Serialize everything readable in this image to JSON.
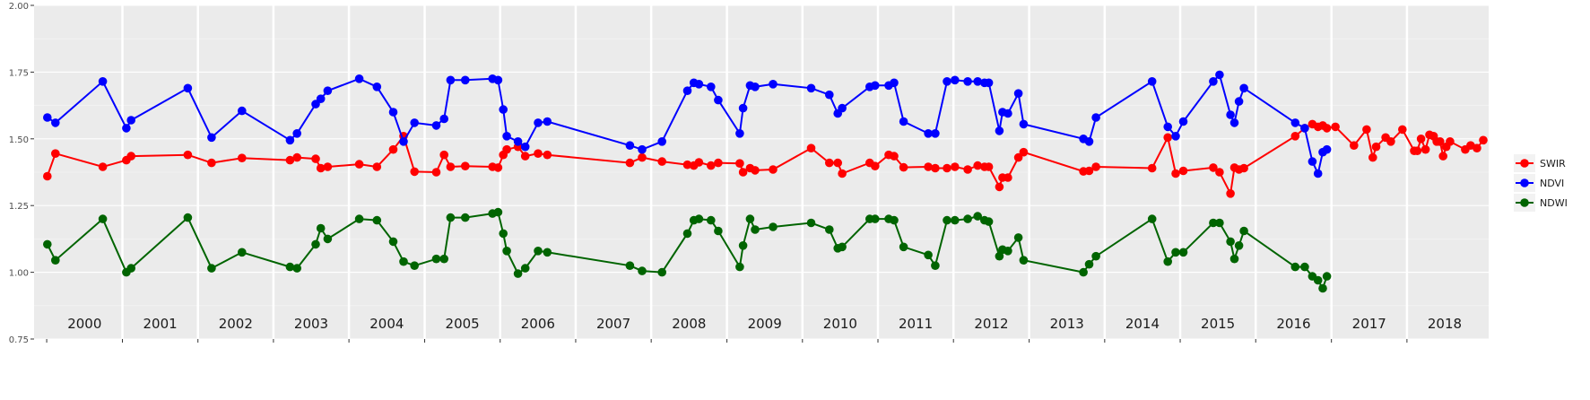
{
  "chart_data": {
    "type": "line",
    "title": "",
    "xlabel": "",
    "ylabel": "",
    "ylim": [
      0.75,
      2.0
    ],
    "y_ticks": [
      "0.75",
      "1.00",
      "1.25",
      "1.50",
      "1.75",
      "2.00"
    ],
    "y_tick_values": [
      0.75,
      1.0,
      1.25,
      1.5,
      1.75,
      2.0
    ],
    "xlim": [
      "1999-11-01",
      "2019-01-31"
    ],
    "year_labels": [
      "2000",
      "2001",
      "2002",
      "2003",
      "2004",
      "2005",
      "2006",
      "2007",
      "2008",
      "2009",
      "2010",
      "2011",
      "2012",
      "2013",
      "2014",
      "2015",
      "2016",
      "2017",
      "2018"
    ],
    "grid": true,
    "legend_position": "right",
    "series": [
      {
        "name": "SWIR",
        "color": "#ff0000",
        "points": [
          [
            "2000-01-04",
            1.36
          ],
          [
            "2000-02-12",
            1.445
          ],
          [
            "2000-09-28",
            1.395
          ],
          [
            "2001-01-20",
            1.42
          ],
          [
            "2001-02-12",
            1.435
          ],
          [
            "2001-11-13",
            1.44
          ],
          [
            "2002-03-08",
            1.41
          ],
          [
            "2002-08-02",
            1.428
          ],
          [
            "2003-03-22",
            1.42
          ],
          [
            "2003-04-25",
            1.43
          ],
          [
            "2003-07-24",
            1.425
          ],
          [
            "2003-08-18",
            1.39
          ],
          [
            "2003-09-20",
            1.395
          ],
          [
            "2004-02-20",
            1.405
          ],
          [
            "2004-05-15",
            1.395
          ],
          [
            "2004-08-02",
            1.46
          ],
          [
            "2004-09-21",
            1.51
          ],
          [
            "2004-11-13",
            1.377
          ],
          [
            "2005-02-26",
            1.375
          ],
          [
            "2005-04-05",
            1.44
          ],
          [
            "2005-05-06",
            1.395
          ],
          [
            "2005-07-16",
            1.398
          ],
          [
            "2005-11-25",
            1.395
          ],
          [
            "2005-12-22",
            1.392
          ],
          [
            "2006-01-16",
            1.44
          ],
          [
            "2006-02-02",
            1.46
          ],
          [
            "2006-03-28",
            1.47
          ],
          [
            "2006-05-02",
            1.435
          ],
          [
            "2006-07-03",
            1.445
          ],
          [
            "2006-08-17",
            1.44
          ],
          [
            "2007-09-20",
            1.41
          ],
          [
            "2007-11-18",
            1.43
          ],
          [
            "2008-02-22",
            1.415
          ],
          [
            "2008-06-24",
            1.403
          ],
          [
            "2008-07-25",
            1.4
          ],
          [
            "2008-08-19",
            1.412
          ],
          [
            "2008-10-16",
            1.4
          ],
          [
            "2008-11-20",
            1.41
          ],
          [
            "2009-03-04",
            1.408
          ],
          [
            "2009-03-20",
            1.375
          ],
          [
            "2009-04-23",
            1.39
          ],
          [
            "2009-05-17",
            1.382
          ],
          [
            "2009-08-12",
            1.385
          ],
          [
            "2010-02-12",
            1.465
          ],
          [
            "2010-05-11",
            1.41
          ],
          [
            "2010-06-21",
            1.41
          ],
          [
            "2010-07-12",
            1.37
          ],
          [
            "2010-11-22",
            1.41
          ],
          [
            "2010-12-18",
            1.398
          ],
          [
            "2011-02-22",
            1.44
          ],
          [
            "2011-03-20",
            1.435
          ],
          [
            "2011-05-05",
            1.393
          ],
          [
            "2011-09-01",
            1.395
          ],
          [
            "2011-10-05",
            1.39
          ],
          [
            "2011-12-01",
            1.39
          ],
          [
            "2012-01-08",
            1.395
          ],
          [
            "2012-03-10",
            1.385
          ],
          [
            "2012-04-27",
            1.4
          ],
          [
            "2012-05-30",
            1.395
          ],
          [
            "2012-06-20",
            1.395
          ],
          [
            "2012-08-10",
            1.32
          ],
          [
            "2012-08-25",
            1.355
          ],
          [
            "2012-09-20",
            1.355
          ],
          [
            "2012-11-10",
            1.43
          ],
          [
            "2012-12-05",
            1.45
          ],
          [
            "2013-09-20",
            1.378
          ],
          [
            "2013-10-18",
            1.38
          ],
          [
            "2013-11-20",
            1.395
          ],
          [
            "2014-08-18",
            1.39
          ],
          [
            "2014-11-02",
            1.505
          ],
          [
            "2014-12-10",
            1.37
          ],
          [
            "2015-01-16",
            1.38
          ],
          [
            "2015-06-10",
            1.392
          ],
          [
            "2015-07-10",
            1.375
          ],
          [
            "2015-09-01",
            1.295
          ],
          [
            "2015-09-20",
            1.392
          ],
          [
            "2015-10-12",
            1.385
          ],
          [
            "2015-11-05",
            1.39
          ],
          [
            "2016-07-10",
            1.51
          ],
          [
            "2016-08-25",
            1.54
          ],
          [
            "2016-10-01",
            1.555
          ],
          [
            "2016-10-28",
            1.545
          ],
          [
            "2016-11-20",
            1.55
          ],
          [
            "2016-12-10",
            1.54
          ]
        ]
      },
      {
        "name": "NDVI",
        "color": "#0000ff",
        "points": [
          [
            "2000-01-04",
            1.58
          ],
          [
            "2000-02-12",
            1.56
          ],
          [
            "2000-09-28",
            1.715
          ],
          [
            "2001-01-20",
            1.54
          ],
          [
            "2001-02-12",
            1.57
          ],
          [
            "2001-11-13",
            1.69
          ],
          [
            "2002-03-08",
            1.505
          ],
          [
            "2002-08-02",
            1.605
          ],
          [
            "2003-03-22",
            1.495
          ],
          [
            "2003-04-25",
            1.52
          ],
          [
            "2003-07-24",
            1.63
          ],
          [
            "2003-08-18",
            1.65
          ],
          [
            "2003-09-20",
            1.68
          ],
          [
            "2004-02-20",
            1.725
          ],
          [
            "2004-05-15",
            1.695
          ],
          [
            "2004-08-02",
            1.6
          ],
          [
            "2004-09-21",
            1.49
          ],
          [
            "2004-11-13",
            1.56
          ],
          [
            "2005-02-26",
            1.55
          ],
          [
            "2005-04-05",
            1.575
          ],
          [
            "2005-05-06",
            1.72
          ],
          [
            "2005-07-16",
            1.72
          ],
          [
            "2005-11-25",
            1.725
          ],
          [
            "2005-12-22",
            1.72
          ],
          [
            "2006-01-16",
            1.61
          ],
          [
            "2006-02-02",
            1.51
          ],
          [
            "2006-03-28",
            1.49
          ],
          [
            "2006-05-02",
            1.47
          ],
          [
            "2006-07-03",
            1.56
          ],
          [
            "2006-08-17",
            1.565
          ],
          [
            "2007-09-20",
            1.475
          ],
          [
            "2007-11-18",
            1.46
          ],
          [
            "2008-02-22",
            1.49
          ],
          [
            "2008-06-24",
            1.68
          ],
          [
            "2008-07-25",
            1.71
          ],
          [
            "2008-08-19",
            1.705
          ],
          [
            "2008-10-16",
            1.695
          ],
          [
            "2008-11-20",
            1.645
          ],
          [
            "2009-03-04",
            1.52
          ],
          [
            "2009-03-20",
            1.615
          ],
          [
            "2009-04-23",
            1.7
          ],
          [
            "2009-05-17",
            1.695
          ],
          [
            "2009-08-12",
            1.705
          ],
          [
            "2010-02-12",
            1.69
          ],
          [
            "2010-05-11",
            1.665
          ],
          [
            "2010-06-21",
            1.595
          ],
          [
            "2010-07-12",
            1.615
          ],
          [
            "2010-11-22",
            1.695
          ],
          [
            "2010-12-18",
            1.7
          ],
          [
            "2011-02-22",
            1.7
          ],
          [
            "2011-03-20",
            1.71
          ],
          [
            "2011-05-05",
            1.565
          ],
          [
            "2011-09-01",
            1.52
          ],
          [
            "2011-10-05",
            1.52
          ],
          [
            "2011-12-01",
            1.715
          ],
          [
            "2012-01-08",
            1.72
          ],
          [
            "2012-03-10",
            1.715
          ],
          [
            "2012-04-27",
            1.715
          ],
          [
            "2012-05-30",
            1.71
          ],
          [
            "2012-06-20",
            1.71
          ],
          [
            "2012-08-10",
            1.53
          ],
          [
            "2012-08-25",
            1.6
          ],
          [
            "2012-09-20",
            1.595
          ],
          [
            "2012-11-10",
            1.67
          ],
          [
            "2012-12-05",
            1.555
          ],
          [
            "2013-09-20",
            1.5
          ],
          [
            "2013-10-18",
            1.49
          ],
          [
            "2013-11-20",
            1.58
          ],
          [
            "2014-08-18",
            1.715
          ],
          [
            "2014-11-02",
            1.545
          ],
          [
            "2014-12-10",
            1.51
          ],
          [
            "2015-01-16",
            1.565
          ],
          [
            "2015-06-10",
            1.715
          ],
          [
            "2015-07-10",
            1.74
          ],
          [
            "2015-09-01",
            1.59
          ],
          [
            "2015-09-20",
            1.56
          ],
          [
            "2015-10-12",
            1.64
          ],
          [
            "2015-11-05",
            1.69
          ],
          [
            "2016-07-10",
            1.56
          ],
          [
            "2016-08-25",
            1.54
          ],
          [
            "2016-10-01",
            1.415
          ],
          [
            "2016-10-28",
            1.37
          ],
          [
            "2016-11-20",
            1.45
          ],
          [
            "2016-12-10",
            1.46
          ]
        ]
      },
      {
        "name": "NDWI",
        "color": "#006400",
        "points": [
          [
            "2000-01-04",
            1.105
          ],
          [
            "2000-02-12",
            1.045
          ],
          [
            "2000-09-28",
            1.2
          ],
          [
            "2001-01-20",
            1.0
          ],
          [
            "2001-02-12",
            1.015
          ],
          [
            "2001-11-13",
            1.205
          ],
          [
            "2002-03-08",
            1.015
          ],
          [
            "2002-08-02",
            1.075
          ],
          [
            "2003-03-22",
            1.02
          ],
          [
            "2003-04-25",
            1.015
          ],
          [
            "2003-07-24",
            1.105
          ],
          [
            "2003-08-18",
            1.165
          ],
          [
            "2003-09-20",
            1.125
          ],
          [
            "2004-02-20",
            1.2
          ],
          [
            "2004-05-15",
            1.195
          ],
          [
            "2004-08-02",
            1.115
          ],
          [
            "2004-09-21",
            1.04
          ],
          [
            "2004-11-13",
            1.025
          ],
          [
            "2005-02-26",
            1.05
          ],
          [
            "2005-04-05",
            1.05
          ],
          [
            "2005-05-06",
            1.205
          ],
          [
            "2005-07-16",
            1.205
          ],
          [
            "2005-11-25",
            1.22
          ],
          [
            "2005-12-22",
            1.225
          ],
          [
            "2006-01-16",
            1.145
          ],
          [
            "2006-02-02",
            1.08
          ],
          [
            "2006-03-28",
            0.995
          ],
          [
            "2006-05-02",
            1.015
          ],
          [
            "2006-07-03",
            1.08
          ],
          [
            "2006-08-17",
            1.075
          ],
          [
            "2007-09-20",
            1.025
          ],
          [
            "2007-11-18",
            1.005
          ],
          [
            "2008-02-22",
            1.0
          ],
          [
            "2008-06-24",
            1.145
          ],
          [
            "2008-07-25",
            1.195
          ],
          [
            "2008-08-19",
            1.2
          ],
          [
            "2008-10-16",
            1.195
          ],
          [
            "2008-11-20",
            1.155
          ],
          [
            "2009-03-04",
            1.02
          ],
          [
            "2009-03-20",
            1.1
          ],
          [
            "2009-04-23",
            1.2
          ],
          [
            "2009-05-17",
            1.16
          ],
          [
            "2009-08-12",
            1.17
          ],
          [
            "2010-02-12",
            1.185
          ],
          [
            "2010-05-11",
            1.16
          ],
          [
            "2010-06-21",
            1.09
          ],
          [
            "2010-07-12",
            1.095
          ],
          [
            "2010-11-22",
            1.2
          ],
          [
            "2010-12-18",
            1.2
          ],
          [
            "2011-02-22",
            1.2
          ],
          [
            "2011-03-20",
            1.195
          ],
          [
            "2011-05-05",
            1.095
          ],
          [
            "2011-09-01",
            1.065
          ],
          [
            "2011-10-05",
            1.025
          ],
          [
            "2011-12-01",
            1.195
          ],
          [
            "2012-01-08",
            1.195
          ],
          [
            "2012-03-10",
            1.2
          ],
          [
            "2012-04-27",
            1.21
          ],
          [
            "2012-05-30",
            1.195
          ],
          [
            "2012-06-20",
            1.19
          ],
          [
            "2012-08-10",
            1.06
          ],
          [
            "2012-08-25",
            1.085
          ],
          [
            "2012-09-20",
            1.08
          ],
          [
            "2012-11-10",
            1.13
          ],
          [
            "2012-12-05",
            1.045
          ],
          [
            "2013-09-20",
            1.0
          ],
          [
            "2013-10-18",
            1.03
          ],
          [
            "2013-11-20",
            1.06
          ],
          [
            "2014-08-18",
            1.2
          ],
          [
            "2014-11-02",
            1.04
          ],
          [
            "2014-12-10",
            1.075
          ],
          [
            "2015-01-16",
            1.075
          ],
          [
            "2015-06-10",
            1.185
          ],
          [
            "2015-07-10",
            1.185
          ],
          [
            "2015-09-01",
            1.115
          ],
          [
            "2015-09-20",
            1.05
          ],
          [
            "2015-10-12",
            1.1
          ],
          [
            "2015-11-05",
            1.155
          ],
          [
            "2016-07-10",
            1.02
          ],
          [
            "2016-08-25",
            1.02
          ],
          [
            "2016-10-01",
            0.985
          ],
          [
            "2016-10-28",
            0.97
          ],
          [
            "2016-11-20",
            0.94
          ],
          [
            "2016-12-10",
            0.985
          ]
        ]
      }
    ]
  },
  "extra_points": {
    "SWIR": [
      [
        "2017-01-20",
        1.545
      ],
      [
        "2017-04-20",
        1.475
      ],
      [
        "2017-06-20",
        1.535
      ],
      [
        "2017-07-20",
        1.43
      ],
      [
        "2017-08-05",
        1.47
      ],
      [
        "2017-09-20",
        1.505
      ],
      [
        "2017-10-15",
        1.49
      ],
      [
        "2017-12-10",
        1.535
      ],
      [
        "2018-02-05",
        1.455
      ],
      [
        "2018-02-20",
        1.455
      ],
      [
        "2018-03-10",
        1.5
      ],
      [
        "2018-04-01",
        1.46
      ],
      [
        "2018-04-20",
        1.515
      ],
      [
        "2018-05-10",
        1.51
      ],
      [
        "2018-05-25",
        1.49
      ],
      [
        "2018-06-10",
        1.49
      ],
      [
        "2018-06-25",
        1.435
      ],
      [
        "2018-07-10",
        1.47
      ],
      [
        "2018-07-28",
        1.49
      ],
      [
        "2018-10-10",
        1.46
      ],
      [
        "2018-11-05",
        1.475
      ],
      [
        "2018-12-05",
        1.465
      ],
      [
        "2019-01-05",
        1.495
      ]
    ]
  }
}
